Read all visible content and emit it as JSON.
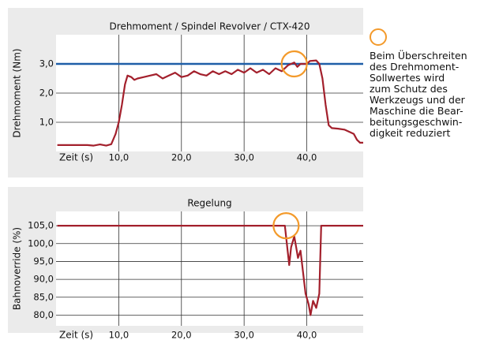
{
  "chart_data": [
    {
      "type": "line",
      "title": "Drehmoment / Spindel Revolver / CTX-420",
      "ylabel": "Drehmoment (Nm)",
      "xlabel": "Zeit (s)",
      "xlim": [
        0,
        49
      ],
      "ylim": [
        0,
        4
      ],
      "xticks": [
        {
          "value": 10,
          "label": "10,0"
        },
        {
          "value": 20,
          "label": "20,0"
        },
        {
          "value": 30,
          "label": "30,0"
        },
        {
          "value": 40,
          "label": "40,0"
        }
      ],
      "yticks": [
        {
          "value": 1,
          "label": "1,0"
        },
        {
          "value": 2,
          "label": "2,0"
        },
        {
          "value": 3,
          "label": "3,0"
        }
      ],
      "grid": true,
      "color": "#a3202c",
      "reference": {
        "value": 3,
        "color": "#1f5fa8"
      },
      "highlight": {
        "x": 38,
        "y": 3.0,
        "color": "#f39a2b"
      },
      "x": [
        0.2,
        2,
        5,
        6,
        7,
        8,
        8.8,
        9.5,
        10,
        10.5,
        11,
        11.4,
        12,
        12.5,
        13,
        14,
        15,
        16,
        17,
        18,
        19,
        20,
        21,
        22,
        23,
        24,
        25,
        26,
        27,
        28,
        29,
        30,
        31,
        32,
        33,
        34,
        35,
        36,
        37,
        38,
        38.5,
        39,
        40,
        40.5,
        41.5,
        42,
        42.5,
        43,
        43.5,
        44,
        45,
        46,
        47,
        47.5,
        48,
        48.5,
        49
      ],
      "values": [
        0.22,
        0.22,
        0.22,
        0.2,
        0.24,
        0.2,
        0.25,
        0.6,
        1.0,
        1.6,
        2.3,
        2.6,
        2.55,
        2.45,
        2.5,
        2.55,
        2.6,
        2.65,
        2.5,
        2.6,
        2.7,
        2.55,
        2.6,
        2.75,
        2.65,
        2.6,
        2.75,
        2.65,
        2.75,
        2.65,
        2.8,
        2.7,
        2.85,
        2.7,
        2.8,
        2.65,
        2.85,
        2.75,
        2.95,
        3.05,
        2.9,
        3.0,
        3.0,
        3.1,
        3.12,
        3.0,
        2.5,
        1.6,
        0.9,
        0.8,
        0.78,
        0.75,
        0.65,
        0.6,
        0.4,
        0.3,
        0.3
      ]
    },
    {
      "type": "line",
      "title": "Regelung",
      "ylabel": "Bahnoverride  (%)",
      "xlabel": "Zeit (s)",
      "xlim": [
        0,
        49
      ],
      "ylim": [
        77,
        109
      ],
      "xticks": [
        {
          "value": 10,
          "label": "10,0"
        },
        {
          "value": 20,
          "label": "20,0"
        },
        {
          "value": 30,
          "label": "30,0"
        },
        {
          "value": 40,
          "label": "40,0"
        }
      ],
      "yticks": [
        {
          "value": 80,
          "label": "80,0"
        },
        {
          "value": 85,
          "label": "85,0"
        },
        {
          "value": 90,
          "label": "90,0"
        },
        {
          "value": 95,
          "label": "95,0"
        },
        {
          "value": 100,
          "label": "100,0"
        },
        {
          "value": 105,
          "label": "105,0"
        }
      ],
      "grid": true,
      "color": "#a3202c",
      "highlight": {
        "x": 36.7,
        "y": 105,
        "color": "#f39a2b"
      },
      "x": [
        0.2,
        10,
        20,
        30,
        36.5,
        37.2,
        37.5,
        38,
        38.3,
        38.6,
        39,
        39.4,
        39.8,
        40.3,
        40.6,
        41,
        41.5,
        42,
        42.3,
        45,
        49
      ],
      "values": [
        105,
        105,
        105,
        105,
        105,
        94,
        99,
        102,
        99,
        96,
        98,
        92,
        86,
        83,
        80,
        84,
        82,
        86,
        105,
        105,
        105
      ]
    }
  ],
  "note": {
    "lines": [
      "Beim Überschreiten",
      "des Drehmoment-",
      "Sollwertes wird",
      "zum Schutz des",
      "Werkzeugs und der",
      "Maschine die Bear-",
      "beitungsgeschwin-",
      "digkeit reduziert"
    ]
  }
}
